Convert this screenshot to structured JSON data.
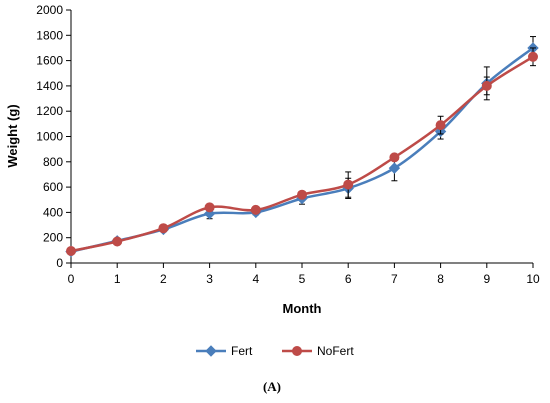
{
  "chart_data": {
    "type": "line",
    "xlabel": "Month",
    "ylabel": "Weight (g)",
    "xlim": [
      0,
      10
    ],
    "ylim": [
      0,
      2000
    ],
    "x_ticks": [
      0,
      1,
      2,
      3,
      4,
      5,
      6,
      7,
      8,
      9,
      10
    ],
    "y_ticks": [
      0,
      200,
      400,
      600,
      800,
      1000,
      1200,
      1400,
      1600,
      1800,
      2000
    ],
    "grid": false,
    "legend_position": "bottom",
    "caption": "(A)",
    "x": [
      0,
      1,
      2,
      3,
      4,
      5,
      6,
      7,
      8,
      9,
      10
    ],
    "series": [
      {
        "name": "Fert",
        "color": "#4a7ebb",
        "marker": "diamond",
        "values": [
          90,
          175,
          265,
          390,
          400,
          510,
          590,
          750,
          1040,
          1420,
          1700
        ],
        "error": [
          10,
          15,
          20,
          40,
          20,
          45,
          80,
          100,
          60,
          130,
          90
        ]
      },
      {
        "name": "NoFert",
        "color": "#be4b48",
        "marker": "circle",
        "values": [
          95,
          170,
          275,
          440,
          420,
          540,
          620,
          835,
          1090,
          1400,
          1630
        ],
        "error": [
          10,
          15,
          15,
          20,
          20,
          20,
          100,
          20,
          70,
          70,
          70
        ]
      }
    ]
  }
}
